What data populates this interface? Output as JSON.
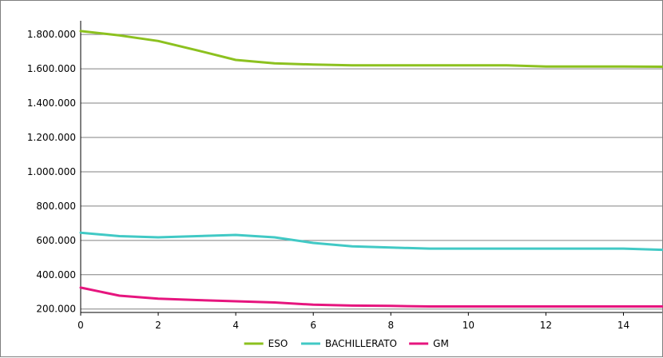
{
  "chart_data": {
    "type": "line",
    "title": "",
    "xlabel": "",
    "ylabel": "",
    "xlim": [
      0,
      15
    ],
    "ylim": [
      180000,
      1880000
    ],
    "x_ticks": [
      0,
      2,
      4,
      6,
      8,
      10,
      12,
      14
    ],
    "y_ticks": [
      200000,
      400000,
      600000,
      800000,
      1000000,
      1200000,
      1400000,
      1600000,
      1800000
    ],
    "y_tick_labels": [
      "200.000",
      "400.000",
      "600.000",
      "800.000",
      "1.000.000",
      "1.200.000",
      "1.400.000",
      "1.600.000",
      "1.800.000"
    ],
    "x_tick_labels": [
      "0",
      "2",
      "4",
      "6",
      "8",
      "10",
      "12",
      "14"
    ],
    "grid": "horizontal",
    "legend_position": "bottom",
    "x": [
      0,
      1,
      2,
      3,
      4,
      5,
      6,
      7,
      8,
      9,
      10,
      11,
      12,
      13,
      14,
      15
    ],
    "series": [
      {
        "name": "ESO",
        "color": "#8cc11f",
        "values": [
          1820000,
          1795000,
          1762000,
          1708000,
          1652000,
          1632000,
          1625000,
          1620000,
          1620000,
          1620000,
          1620000,
          1620000,
          1613000,
          1613000,
          1613000,
          1612000
        ]
      },
      {
        "name": "BACHILLERATO",
        "color": "#41c9c5",
        "values": [
          645000,
          625000,
          618000,
          625000,
          632000,
          618000,
          585000,
          565000,
          558000,
          552000,
          552000,
          552000,
          552000,
          552000,
          552000,
          545000
        ]
      },
      {
        "name": "GM",
        "color": "#e6157e",
        "values": [
          325000,
          278000,
          260000,
          252000,
          245000,
          238000,
          225000,
          220000,
          218000,
          215000,
          215000,
          215000,
          215000,
          215000,
          215000,
          215000
        ]
      }
    ]
  }
}
